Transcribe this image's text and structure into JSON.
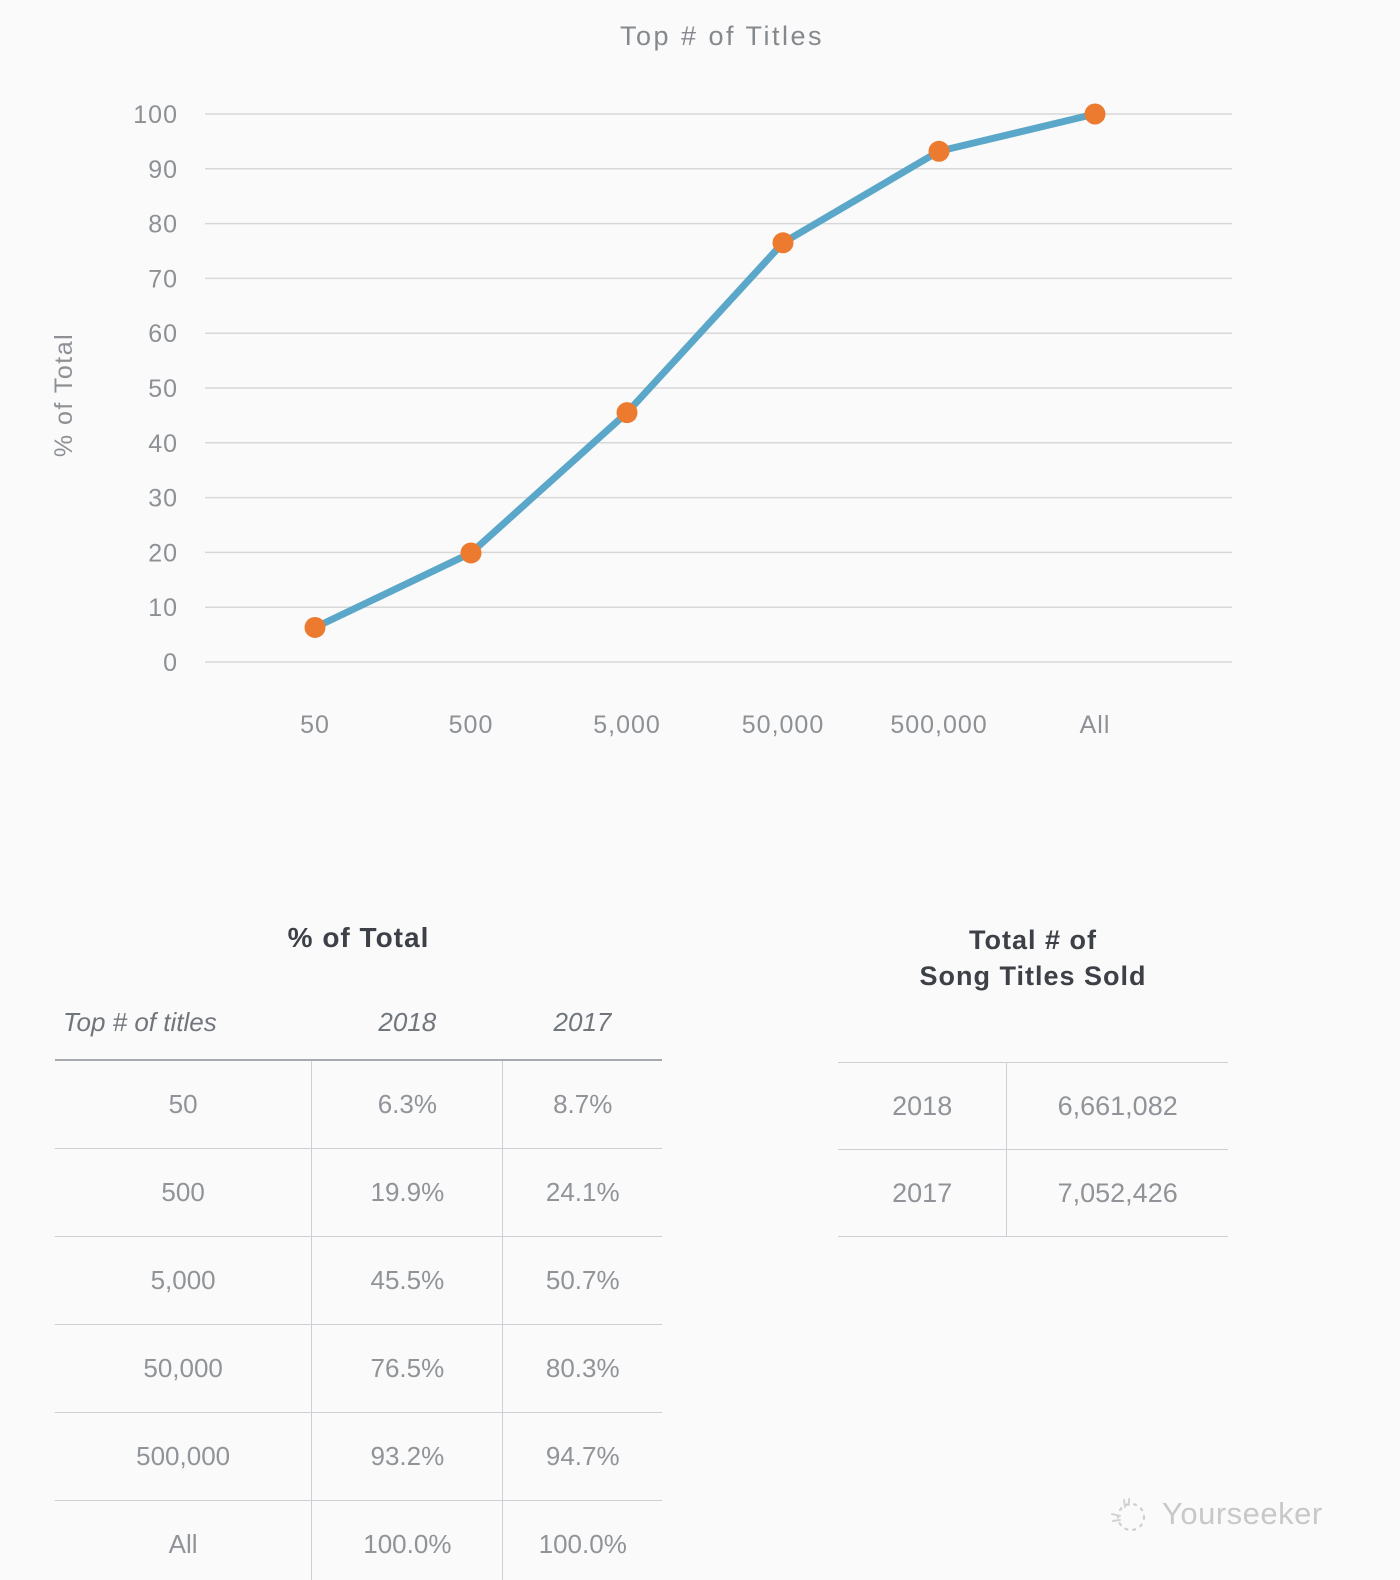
{
  "chart_data": {
    "type": "line",
    "title": "Top # of Titles",
    "xlabel": "",
    "ylabel": "% of Total",
    "categories": [
      "50",
      "500",
      "5,000",
      "50,000",
      "500,000",
      "All"
    ],
    "series": [
      {
        "name": "2018",
        "values": [
          6.3,
          19.9,
          45.5,
          76.5,
          93.2,
          100.0
        ]
      }
    ],
    "ylim": [
      0,
      100
    ],
    "ytick_step": 10,
    "grid": true,
    "legend": "none",
    "line_color": "#5BA7C9",
    "marker_color": "#ED7B2F"
  },
  "left_table": {
    "title": "% of Total",
    "headers": [
      "Top # of titles",
      "2018",
      "2017"
    ],
    "rows": [
      {
        "label": "50",
        "v2018": "6.3%",
        "v2017": "8.7%"
      },
      {
        "label": "500",
        "v2018": "19.9%",
        "v2017": "24.1%"
      },
      {
        "label": "5,000",
        "v2018": "45.5%",
        "v2017": "50.7%"
      },
      {
        "label": "50,000",
        "v2018": "76.5%",
        "v2017": "80.3%"
      },
      {
        "label": "500,000",
        "v2018": "93.2%",
        "v2017": "94.7%"
      },
      {
        "label": "All",
        "v2018": "100.0%",
        "v2017": "100.0%"
      }
    ]
  },
  "right_table": {
    "title_line1": "Total # of",
    "title_line2": "Song Titles Sold",
    "rows": [
      {
        "year": "2018",
        "total": "6,661,082"
      },
      {
        "year": "2017",
        "total": "7,052,426"
      }
    ]
  },
  "watermark": {
    "label": "Yourseeker"
  },
  "colors": {
    "background": "#fafafa",
    "grid": "#d8d8d8",
    "axis_text": "#8d9195",
    "chart_title_text": "#85898d",
    "line": "#5BA7C9",
    "marker": "#ED7B2F",
    "table_title_text": "#3d4147",
    "table_text": "#909498",
    "table_line": "#ccd0d4",
    "watermark_text": "#c8c8c8"
  }
}
